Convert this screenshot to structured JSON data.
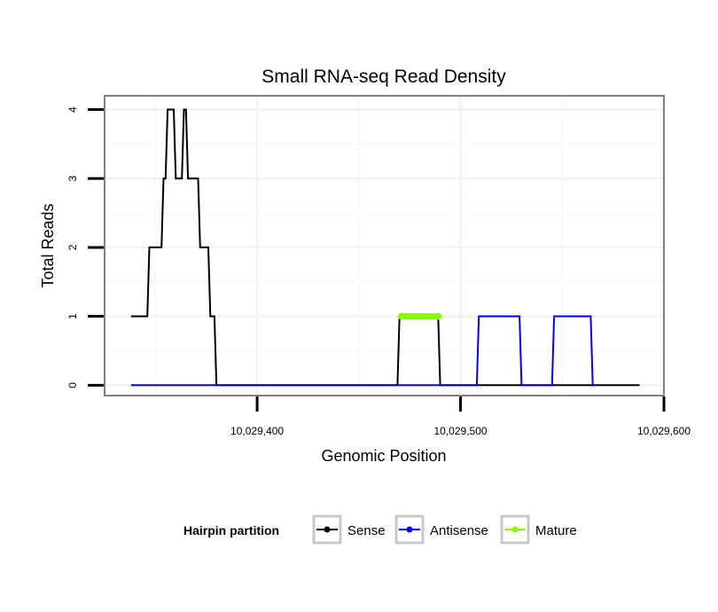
{
  "chart_data": {
    "type": "line",
    "title": "Small RNA-seq Read Density",
    "xlabel": "Genomic Position",
    "ylabel": "Total Reads",
    "xlim": [
      10029325,
      10029600
    ],
    "ylim": [
      -0.15,
      4.2
    ],
    "x_ticks": [
      10029400,
      10029500,
      10029600
    ],
    "x_tick_labels": [
      "10,029,400",
      "10,029,500",
      "10,029,600"
    ],
    "y_ticks": [
      0,
      1,
      2,
      3,
      4
    ],
    "y_tick_labels": [
      "0",
      "1",
      "2",
      "3",
      "4"
    ],
    "grid": true,
    "legend": {
      "title": "Hairpin partition",
      "position": "bottom",
      "entries": [
        {
          "name": "Sense",
          "color": "#000000"
        },
        {
          "name": "Antisense",
          "color": "#0000ff"
        },
        {
          "name": "Mature",
          "color": "#7fff00"
        }
      ]
    },
    "series": [
      {
        "name": "Sense",
        "color": "#000000",
        "points": [
          [
            10029338,
            1
          ],
          [
            10029346,
            1
          ],
          [
            10029347,
            2
          ],
          [
            10029353,
            2
          ],
          [
            10029354,
            3
          ],
          [
            10029355,
            3
          ],
          [
            10029356,
            4
          ],
          [
            10029359,
            4
          ],
          [
            10029360,
            3
          ],
          [
            10029363,
            3
          ],
          [
            10029364,
            4
          ],
          [
            10029365,
            4
          ],
          [
            10029366,
            3
          ],
          [
            10029371,
            3
          ],
          [
            10029372,
            2
          ],
          [
            10029376,
            2
          ],
          [
            10029377,
            1
          ],
          [
            10029379,
            1
          ],
          [
            10029380,
            0
          ],
          [
            10029469,
            0
          ],
          [
            10029470,
            1
          ],
          [
            10029489,
            1
          ],
          [
            10029490,
            0
          ],
          [
            10029588,
            0
          ]
        ]
      },
      {
        "name": "Antisense",
        "color": "#0000ff",
        "points": [
          [
            10029338,
            0
          ],
          [
            10029508,
            0
          ],
          [
            10029509,
            1
          ],
          [
            10029529,
            1
          ],
          [
            10029530,
            0
          ],
          [
            10029545,
            0
          ],
          [
            10029546,
            1
          ],
          [
            10029564,
            1
          ],
          [
            10029565,
            0
          ],
          [
            10029566,
            0
          ]
        ]
      },
      {
        "name": "Mature",
        "color": "#7fff00",
        "points": [
          [
            10029471,
            1
          ],
          [
            10029489,
            1
          ]
        ]
      }
    ]
  }
}
